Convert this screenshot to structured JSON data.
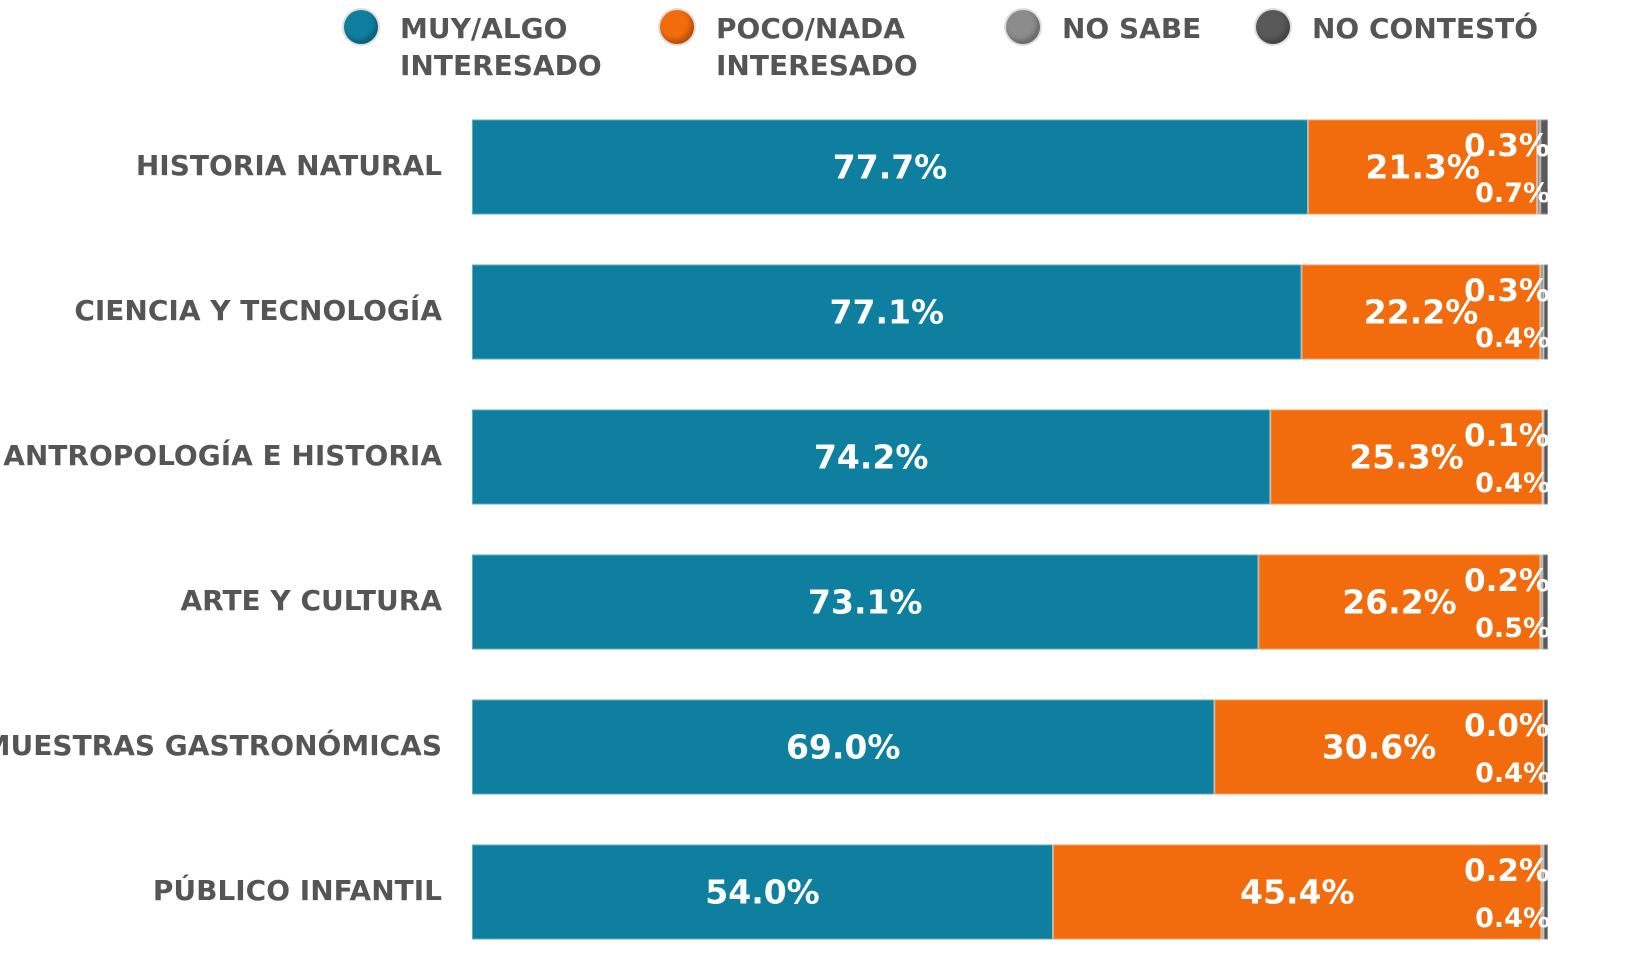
{
  "chart_data": {
    "type": "stacked-barh",
    "categories": [
      "HISTORIA NATURAL",
      "CIENCIA Y TECNOLOGÍA",
      "ANTROPOLOGÍA E HISTORIA",
      "ARTE Y CULTURA",
      "MUESTRAS GASTRONÓMICAS",
      "PÚBLICO INFANTIL"
    ],
    "series": [
      {
        "name": "MUY/ALGO INTERESADO",
        "color": "#0f7fa0",
        "values": [
          77.7,
          77.1,
          74.2,
          73.1,
          69.0,
          54.0
        ],
        "value_labels": [
          "77.7%",
          "77.1%",
          "74.2%",
          "73.1%",
          "69.0%",
          "54.0%"
        ]
      },
      {
        "name": "POCO/NADA INTERESADO",
        "color": "#f26b0c",
        "values": [
          21.3,
          22.2,
          25.3,
          26.2,
          30.6,
          45.4
        ],
        "value_labels": [
          "21.3%",
          "22.2%",
          "25.3%",
          "26.2%",
          "30.6%",
          "45.4%"
        ]
      },
      {
        "name": "NO SABE",
        "color": "#8c8c8c",
        "values": [
          0.3,
          0.3,
          0.1,
          0.2,
          0.0,
          0.2
        ],
        "value_labels": [
          "0.3%",
          "0.3%",
          "0.1%",
          "0.2%",
          "0.0%",
          "0.2%"
        ]
      },
      {
        "name": "NO CONTESTÓ",
        "color": "#595959",
        "values": [
          0.7,
          0.4,
          0.4,
          0.5,
          0.4,
          0.4
        ],
        "value_labels": [
          "0.7%",
          "0.4%",
          "0.4%",
          "0.5%",
          "0.4%",
          "0.4%"
        ]
      }
    ],
    "xlim": [
      0,
      100
    ]
  }
}
